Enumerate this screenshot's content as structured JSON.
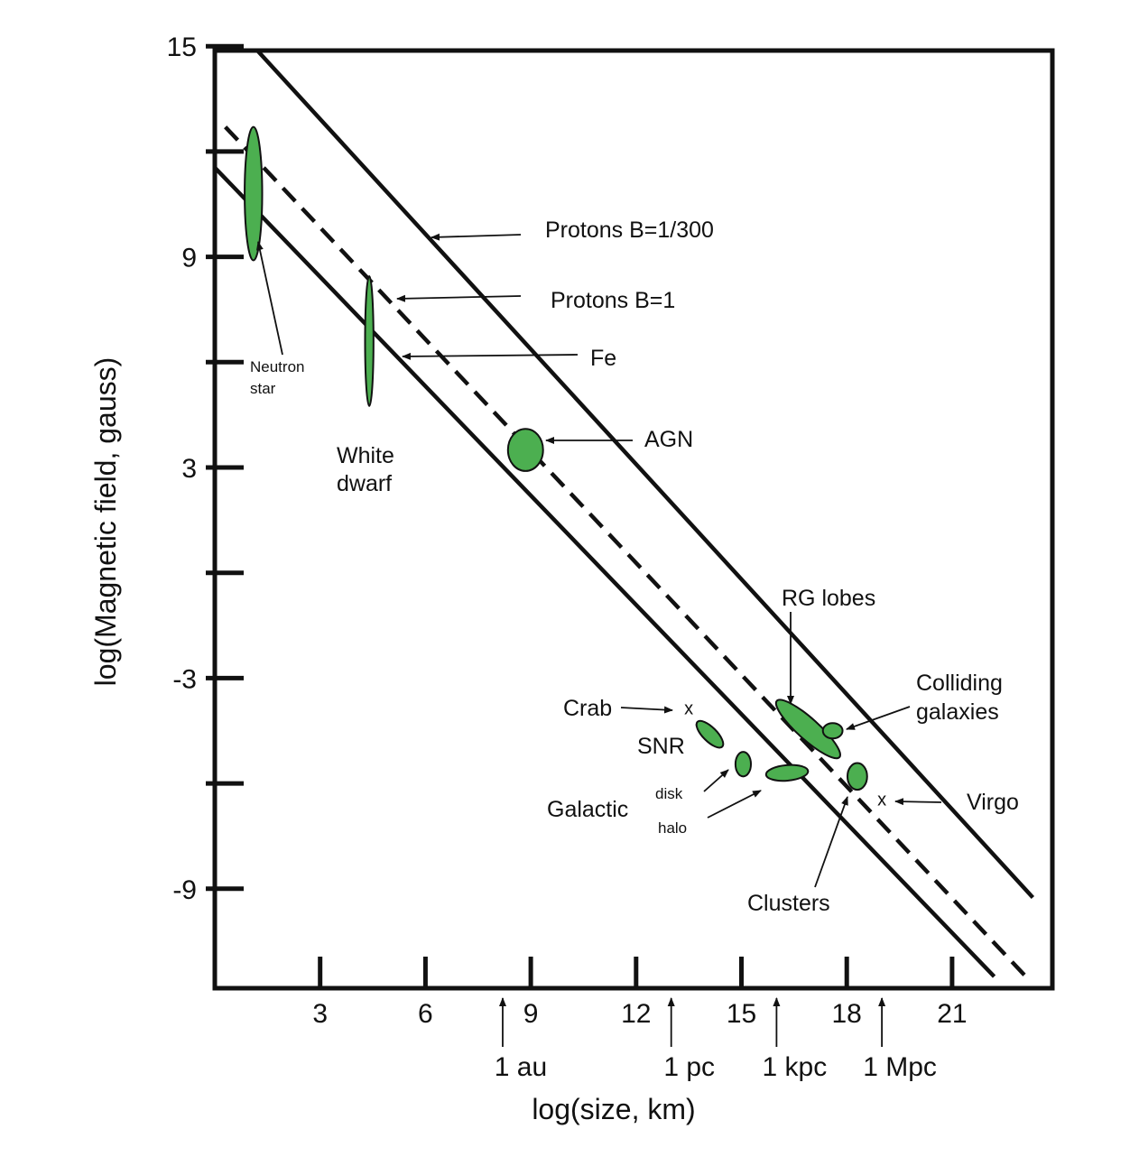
{
  "chart_data": {
    "type": "scatter",
    "title": "",
    "xlabel": "log(size, km)",
    "ylabel": "log(Magnetic field, gauss)",
    "xlim": [
      0,
      23.5
    ],
    "ylim": [
      -11.5,
      15
    ],
    "x_ticks": [
      3,
      6,
      9,
      12,
      15,
      18,
      21
    ],
    "y_ticks": [
      15,
      12,
      9,
      6,
      3,
      0,
      -3,
      -6,
      -9
    ],
    "y_tick_labels": [
      {
        "value": 15,
        "text": "15"
      },
      {
        "value": 9,
        "text": "9"
      },
      {
        "value": 3,
        "text": "3"
      },
      {
        "value": -3,
        "text": "-3"
      },
      {
        "value": -9,
        "text": "-9"
      }
    ],
    "size_scale": [
      {
        "label": "1 au",
        "x": 8.2
      },
      {
        "label": "1 pc",
        "x": 13.0
      },
      {
        "label": "1 kpc",
        "x": 16.0
      },
      {
        "label": "1 Mpc",
        "x": 19.0
      }
    ],
    "lines": [
      {
        "name": "Protons B=1/300",
        "style": "solid",
        "points": [
          [
            1.1,
            15
          ],
          [
            23.3,
            -9.25
          ]
        ]
      },
      {
        "name": "Protons B=1",
        "style": "dashed",
        "points": [
          [
            0.3,
            12.7
          ],
          [
            23.1,
            -11.5
          ]
        ]
      },
      {
        "name": "Fe",
        "style": "solid",
        "points": [
          [
            -0.2,
            11.75
          ],
          [
            22.2,
            -11.5
          ]
        ]
      }
    ],
    "objects": [
      {
        "name": "Neutron star",
        "x": 1.1,
        "y": 10.8,
        "dx": 0.25,
        "dy": 1.9,
        "angle": 0
      },
      {
        "name": "White dwarf",
        "x": 4.4,
        "y": 6.6,
        "dx": 0.12,
        "dy": 1.85,
        "angle": 0
      },
      {
        "name": "AGN",
        "x": 8.85,
        "y": 3.5,
        "dx": 0.5,
        "dy": 0.6,
        "angle": 0
      },
      {
        "name": "SNR",
        "x": 14.1,
        "y": -4.6,
        "dx": 0.5,
        "dy": 0.2,
        "angle": 45
      },
      {
        "name": "disk",
        "x": 15.05,
        "y": -5.45,
        "dx": 0.22,
        "dy": 0.35,
        "angle": 0
      },
      {
        "name": "halo",
        "x": 16.3,
        "y": -5.7,
        "dx": 0.6,
        "dy": 0.22,
        "angle": -5
      },
      {
        "name": "RG lobes",
        "x": 16.9,
        "y": -4.45,
        "dx": 1.2,
        "dy": 0.3,
        "angle": 42
      },
      {
        "name": "Colliding galaxies",
        "x": 17.6,
        "y": -4.5,
        "dx": 0.28,
        "dy": 0.22,
        "angle": 0
      },
      {
        "name": "Clusters",
        "x": 18.3,
        "y": -5.8,
        "dx": 0.28,
        "dy": 0.38,
        "angle": 0
      }
    ],
    "markers": [
      {
        "name": "Crab",
        "symbol": "x",
        "x": 13.5,
        "y": -3.85
      },
      {
        "name": "Virgo",
        "symbol": "x",
        "x": 19.0,
        "y": -6.45
      }
    ],
    "annotations": {
      "protons_300": "Protons B=1/300",
      "protons_1": "Protons  B=1",
      "fe": "Fe",
      "agn": "AGN",
      "neutron_1": "Neutron",
      "neutron_2": "star",
      "white_1": "White",
      "white_2": "dwarf",
      "rg": "RG lobes",
      "colliding_1": "Colliding",
      "colliding_2": "galaxies",
      "crab": "Crab",
      "snr": "SNR",
      "galactic": "Galactic",
      "disk": "disk",
      "halo": "halo",
      "virgo": "Virgo",
      "clusters": "Clusters"
    },
    "colors": {
      "fill": "#4caf50",
      "stroke": "#111111"
    },
    "grid": false,
    "legend": "none"
  }
}
